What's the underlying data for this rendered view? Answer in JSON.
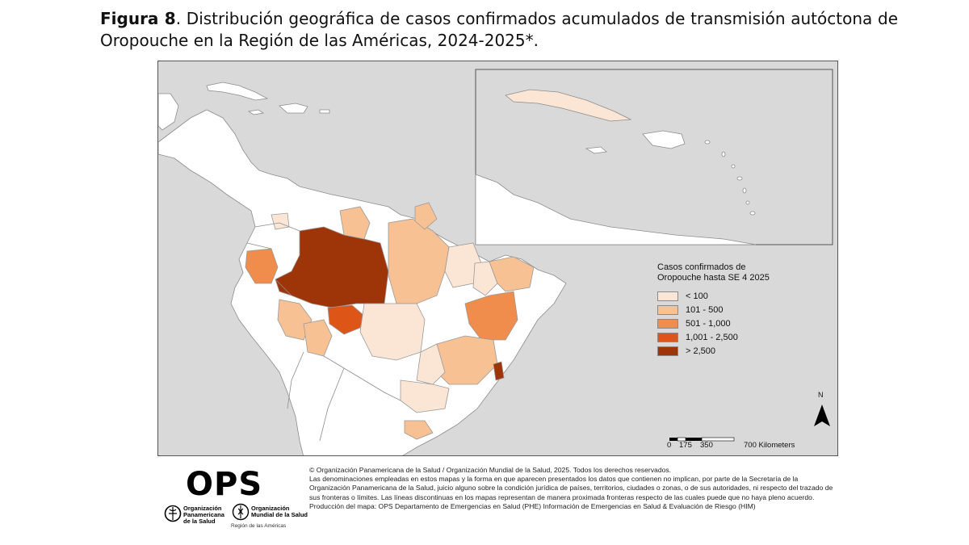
{
  "caption": {
    "figure_label": "Figura 8",
    "text": ". Distribución geográfica de casos confirmados acumulados de transmisión autóctona de Oropouche en la Región de las Américas, 2024-2025*."
  },
  "legend": {
    "title": "Casos confirmados de Oropouche hasta SE 4 2025",
    "classes": [
      {
        "label": "< 100",
        "color": "#fbe6d6"
      },
      {
        "label": "101 - 500",
        "color": "#f7c193"
      },
      {
        "label": "501 - 1,000",
        "color": "#f08c4c"
      },
      {
        "label": "1,001 - 2,500",
        "color": "#dd5517"
      },
      {
        "label": "> 2,500",
        "color": "#9e3508"
      }
    ]
  },
  "scale_bar": {
    "labels": [
      "0",
      "175",
      "350",
      "700 Kilometers"
    ]
  },
  "north_arrow": {
    "label": "N"
  },
  "colors": {
    "sea": "#d9d9d9",
    "land": "#ffffff",
    "border": "#8c8c8c"
  },
  "footer": {
    "logo_text": "OPS",
    "org1": "Organización Panamericana de la Salud",
    "org1_lines": [
      "Organización",
      "Panamericana",
      "de la Salud"
    ],
    "org2_lines": [
      "Organización",
      "Mundial de la Salud"
    ],
    "region": "Región de las Américas",
    "copyright": "© Organización Panamericana de la Salud / Organización Mundial de la Salud, 2025. Todos los derechos reservados.",
    "disclaimer": "Las denominaciones empleadas en estos mapas y la forma en que aparecen presentados los datos que contienen no implican, por parte de la Secretaría de la Organización Panamericana de la Salud, juicio alguno sobre la condición jurídica de países, territorios, ciudades o zonas, o de sus autoridades, ni respecto del trazado de sus fronteras o límites. Las líneas discontinuas en los mapas representan de manera proximada fronteras respecto de las cuales puede que no haya pleno acuerdo.",
    "production": "Producción del mapa: OPS Departamento de Emergencias en Salud (PHE) Información de Emergencias en Salud & Evaluación de Riesgo (HIM)"
  }
}
